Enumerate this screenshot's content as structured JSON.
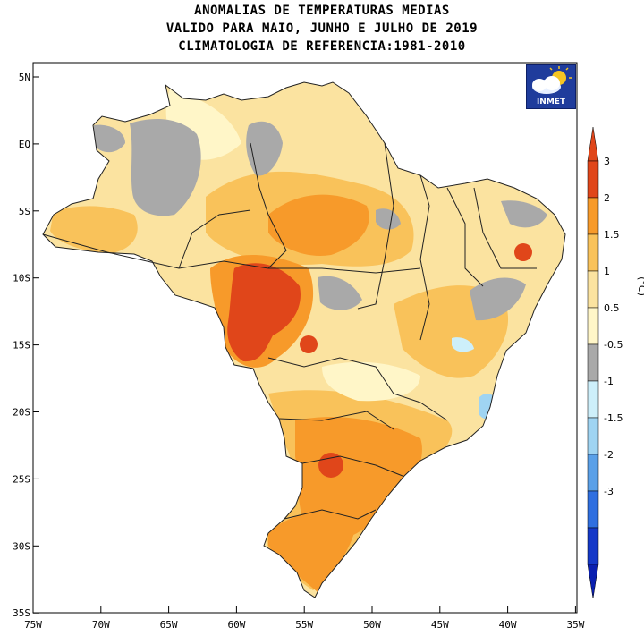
{
  "title": {
    "line1": "ANOMALIAS DE TEMPERATURAS MEDIAS",
    "line2": "VALIDO PARA MAIO, JUNHO E JULHO DE 2019",
    "line3": "CLIMATOLOGIA DE REFERENCIA:1981-2010"
  },
  "logo": {
    "text": "INMET",
    "icon": "cloud-sun-icon"
  },
  "axes": {
    "lat_labels": [
      "5N",
      "EQ",
      "5S",
      "10S",
      "15S",
      "20S",
      "25S",
      "30S",
      "35S"
    ],
    "lon_labels": [
      "75W",
      "70W",
      "65W",
      "60W",
      "55W",
      "50W",
      "45W",
      "40W",
      "35W"
    ]
  },
  "colorbar": {
    "unit": "(°C)",
    "ticks": [
      "3",
      "2",
      "1.5",
      "1",
      "0.5",
      "-0.5",
      "-1",
      "-1.5",
      "-2",
      "-3"
    ],
    "bins": [
      {
        "color": "#e0461a"
      },
      {
        "color": "#f79a2a"
      },
      {
        "color": "#f9c25a"
      },
      {
        "color": "#fbe3a0"
      },
      {
        "color": "#fff6c8"
      },
      {
        "color": "#a9a9a9"
      },
      {
        "color": "#cdeffa"
      },
      {
        "color": "#9fd4f2"
      },
      {
        "color": "#5aa0e8"
      },
      {
        "color": "#2f6fe0"
      },
      {
        "color": "#1438c8"
      }
    ],
    "top_color": "#e0461a",
    "bottom_color": "#0a1fb0"
  },
  "colors": {
    "ocean": "#ffffff",
    "land_base": "#fbe3a0",
    "border": "#222222"
  }
}
